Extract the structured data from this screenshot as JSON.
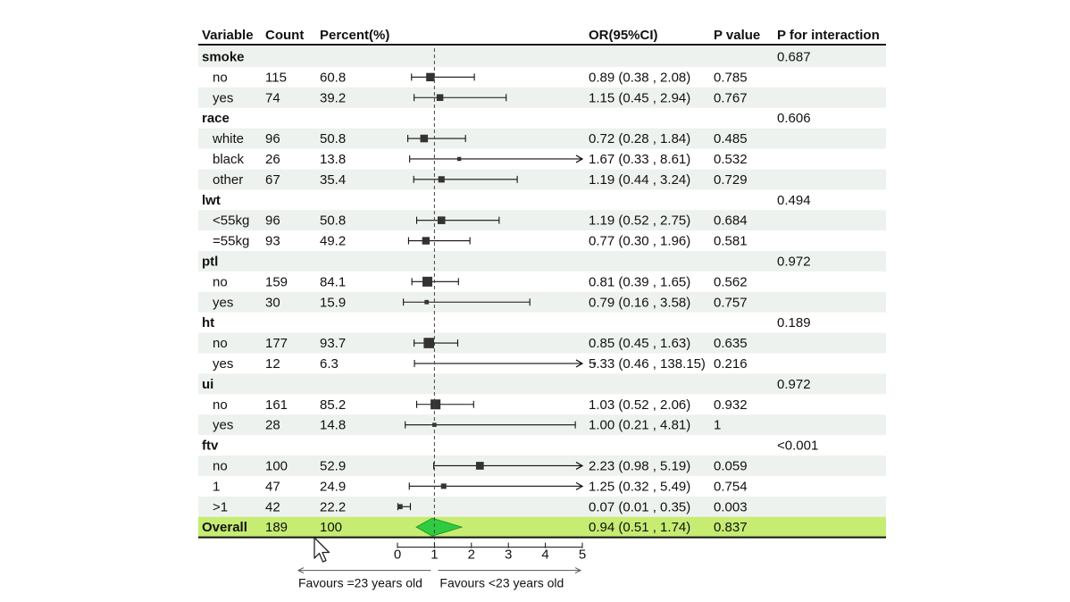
{
  "headers": {
    "variable": "Variable",
    "count": "Count",
    "percent": "Percent(%)",
    "or": "OR(95%CI)",
    "p": "P value",
    "p_int": "P for interaction"
  },
  "chart_data": {
    "type": "forest",
    "xlim": [
      0,
      5
    ],
    "x_ticks": [
      "0",
      "1",
      "2",
      "3",
      "4",
      "5"
    ],
    "reference_line": 1,
    "favours_left": "Favours =23 years old",
    "favours_right": "Favours <23 years old",
    "groups": [
      {
        "name": "smoke",
        "p_interaction": "0.687",
        "rows": [
          {
            "label": "no",
            "count": "115",
            "percent": "60.8",
            "or_text": "0.89 (0.38 , 2.08)",
            "p": "0.785",
            "or": 0.89,
            "lo": 0.38,
            "hi": 2.08
          },
          {
            "label": "yes",
            "count": "74",
            "percent": "39.2",
            "or_text": "1.15 (0.45 , 2.94)",
            "p": "0.767",
            "or": 1.15,
            "lo": 0.45,
            "hi": 2.94
          }
        ]
      },
      {
        "name": "race",
        "p_interaction": "0.606",
        "rows": [
          {
            "label": "white",
            "count": "96",
            "percent": "50.8",
            "or_text": "0.72 (0.28 , 1.84)",
            "p": "0.485",
            "or": 0.72,
            "lo": 0.28,
            "hi": 1.84
          },
          {
            "label": "black",
            "count": "26",
            "percent": "13.8",
            "or_text": "1.67 (0.33 , 8.61)",
            "p": "0.532",
            "or": 1.67,
            "lo": 0.33,
            "hi": 8.61
          },
          {
            "label": "other",
            "count": "67",
            "percent": "35.4",
            "or_text": "1.19 (0.44 , 3.24)",
            "p": "0.729",
            "or": 1.19,
            "lo": 0.44,
            "hi": 3.24
          }
        ]
      },
      {
        "name": "lwt",
        "p_interaction": "0.494",
        "rows": [
          {
            "label": "<55kg",
            "count": "96",
            "percent": "50.8",
            "or_text": "1.19 (0.52 , 2.75)",
            "p": "0.684",
            "or": 1.19,
            "lo": 0.52,
            "hi": 2.75
          },
          {
            "label": "=55kg",
            "count": "93",
            "percent": "49.2",
            "or_text": "0.77 (0.30 , 1.96)",
            "p": "0.581",
            "or": 0.77,
            "lo": 0.3,
            "hi": 1.96
          }
        ]
      },
      {
        "name": "ptl",
        "p_interaction": "0.972",
        "rows": [
          {
            "label": "no",
            "count": "159",
            "percent": "84.1",
            "or_text": "0.81 (0.39 , 1.65)",
            "p": "0.562",
            "or": 0.81,
            "lo": 0.39,
            "hi": 1.65
          },
          {
            "label": "yes",
            "count": "30",
            "percent": "15.9",
            "or_text": "0.79 (0.16 , 3.58)",
            "p": "0.757",
            "or": 0.79,
            "lo": 0.16,
            "hi": 3.58
          }
        ]
      },
      {
        "name": "ht",
        "p_interaction": "0.189",
        "rows": [
          {
            "label": "no",
            "count": "177",
            "percent": "93.7",
            "or_text": "0.85 (0.45 , 1.63)",
            "p": "0.635",
            "or": 0.85,
            "lo": 0.45,
            "hi": 1.63
          },
          {
            "label": "yes",
            "count": "12",
            "percent": "6.3",
            "or_text": "5.33 (0.46 , 138.15)",
            "p": "0.216",
            "or": 5.33,
            "lo": 0.46,
            "hi": 138.15
          }
        ]
      },
      {
        "name": "ui",
        "p_interaction": "0.972",
        "rows": [
          {
            "label": "no",
            "count": "161",
            "percent": "85.2",
            "or_text": "1.03 (0.52 , 2.06)",
            "p": "0.932",
            "or": 1.03,
            "lo": 0.52,
            "hi": 2.06
          },
          {
            "label": "yes",
            "count": "28",
            "percent": "14.8",
            "or_text": "1.00 (0.21 , 4.81)",
            "p": "1",
            "or": 1.0,
            "lo": 0.21,
            "hi": 4.81
          }
        ]
      },
      {
        "name": "ftv",
        "p_interaction": "<0.001",
        "rows": [
          {
            "label": "no",
            "count": "100",
            "percent": "52.9",
            "or_text": "2.23 (0.98 , 5.19)",
            "p": "0.059",
            "or": 2.23,
            "lo": 0.98,
            "hi": 5.19
          },
          {
            "label": "1",
            "count": "47",
            "percent": "24.9",
            "or_text": "1.25 (0.32 , 5.49)",
            "p": "0.754",
            "or": 1.25,
            "lo": 0.32,
            "hi": 5.49
          },
          {
            "label": ">1",
            "count": "42",
            "percent": "22.2",
            "or_text": "0.07 (0.01 , 0.35)",
            "p": "0.003",
            "or": 0.07,
            "lo": 0.01,
            "hi": 0.35
          }
        ]
      }
    ],
    "overall": {
      "label": "Overall",
      "count": "189",
      "percent": "100",
      "or_text": "0.94 (0.51 , 1.74)",
      "p": "0.837",
      "or": 0.94,
      "lo": 0.51,
      "hi": 1.74
    },
    "colors": {
      "stripe": "#eef2ee",
      "overall_bg": "#c6ec72",
      "diamond": "#2ecc40",
      "ink": "#111111"
    }
  }
}
